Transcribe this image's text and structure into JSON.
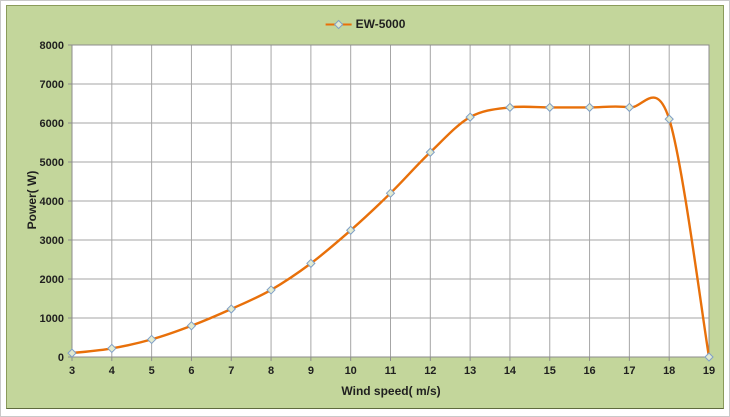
{
  "chart_data": {
    "type": "line",
    "title": "",
    "xlabel": "Wind speed( m/s)",
    "ylabel": "Power( W)",
    "xlim": [
      3,
      19
    ],
    "ylim": [
      0,
      8000
    ],
    "x_ticks": [
      3,
      4,
      5,
      6,
      7,
      8,
      9,
      10,
      11,
      12,
      13,
      14,
      15,
      16,
      17,
      18,
      19
    ],
    "y_ticks": [
      0,
      1000,
      2000,
      3000,
      4000,
      5000,
      6000,
      7000,
      8000
    ],
    "grid": true,
    "smooth": true,
    "legend_position": "top-center",
    "marker": "diamond",
    "series": [
      {
        "name": "EW-5000",
        "x": [
          3,
          4,
          5,
          6,
          7,
          8,
          9,
          10,
          11,
          12,
          13,
          14,
          15,
          16,
          17,
          18,
          19
        ],
        "values": [
          100,
          220,
          450,
          800,
          1230,
          1720,
          2400,
          3250,
          4200,
          5250,
          6150,
          6400,
          6400,
          6400,
          6400,
          6100,
          0
        ]
      }
    ]
  },
  "colors": {
    "chart_background": "#c3d69b",
    "plot_background": "#ffffff",
    "frame_border": "#8a9b5a",
    "gridline": "#a6a6a6",
    "axis_line": "#8c8c8c",
    "series_line": "#e8700a",
    "marker_fill": "#e2ead0",
    "marker_stroke": "#7f9fc6",
    "text": "#1f1f1f"
  }
}
